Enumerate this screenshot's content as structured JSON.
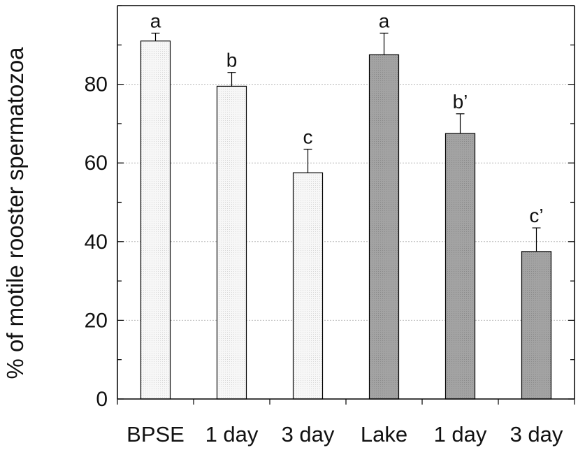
{
  "chart_data": {
    "type": "bar",
    "title": "",
    "xlabel": "",
    "ylabel": "% of motile rooster spermatozoa",
    "ylim": [
      0,
      100
    ],
    "yticks": [
      0,
      20,
      40,
      60,
      80
    ],
    "grid": true,
    "legend": "none",
    "categories": [
      "BPSE",
      "1 day",
      "3 day",
      "Lake",
      "1 day",
      "3 day"
    ],
    "values": [
      91,
      79.5,
      57.5,
      87.5,
      67.5,
      37.5
    ],
    "errors": [
      2,
      3.5,
      6,
      5.5,
      5,
      6
    ],
    "labels": [
      "a",
      "b",
      "c",
      "a",
      "b’",
      "c’"
    ],
    "colors": [
      "#f3f3f3",
      "#f3f3f3",
      "#f3f3f3",
      "#9e9e9e",
      "#9e9e9e",
      "#9e9e9e"
    ]
  }
}
